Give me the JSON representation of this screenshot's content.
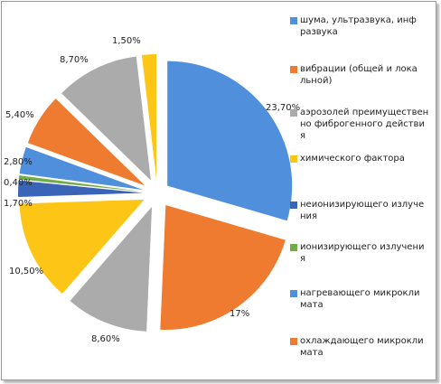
{
  "chart_data": {
    "type": "pie",
    "title": "",
    "slices": [
      {
        "label": "23,70%",
        "value": 23.7,
        "color": "#4f8fdc",
        "legend": "шума, ультразвука, инф\nразвука"
      },
      {
        "label": "17%",
        "value": 17.0,
        "color": "#ee7b2f",
        "legend": "вибрации (общей и лока\nльной)"
      },
      {
        "label": "8,60%",
        "value": 8.6,
        "color": "#ababab",
        "legend": "аэрозолей преимуществен\nно фиброгенного действи\nя"
      },
      {
        "label": "10,50%",
        "value": 10.5,
        "color": "#fdc515",
        "legend": "химического фактора"
      },
      {
        "label": "1,70%",
        "value": 1.7,
        "color": "#3a64b8",
        "legend": "неионизирующего излуче\nния"
      },
      {
        "label": "0,40%",
        "value": 0.4,
        "color": "#70ad47",
        "legend": "ионизирующего излучени\nя"
      },
      {
        "label": "2,80%",
        "value": 2.8,
        "color": "#4f8fdc",
        "legend": "нагревающего микрокли\nмата"
      },
      {
        "label": "5,40%",
        "value": 5.4,
        "color": "#ee7b2f",
        "legend": "охлаждающего микрокли\nмата"
      },
      {
        "label": "8,70%",
        "value": 8.7,
        "color": "#ababab",
        "legend": null
      },
      {
        "label": "1,50%",
        "value": 1.5,
        "color": "#fdc515",
        "legend": null
      }
    ],
    "legend_position": "right"
  }
}
